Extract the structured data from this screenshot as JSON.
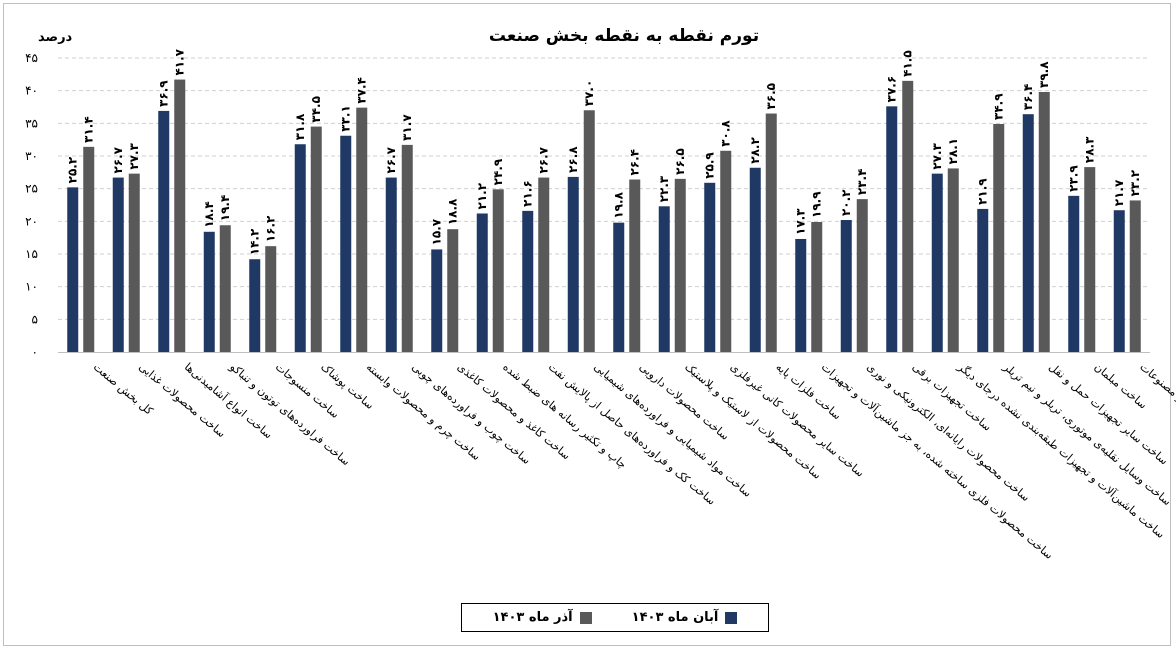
{
  "chart_data": {
    "type": "bar",
    "title": "تورم نقطه به نقطه بخش صنعت",
    "ylabel": "درصد",
    "ylim": [
      0,
      45
    ],
    "yticks": [
      "۰",
      "۵",
      "۱۰",
      "۱۵",
      "۲۰",
      "۲۵",
      "۳۰",
      "۳۵",
      "۴۰",
      "۴۵"
    ],
    "grid": true,
    "legend_position": "bottom",
    "categories": [
      "کل بخش صنعت",
      "ساخت محصولات غذایی",
      "ساخت انواع آشامیدنی‌ها",
      "ساخت فراورده‌های توتون و تنباکو",
      "ساخت منسوجات",
      "ساخت پوشاک",
      "ساخت چرم و محصولات وابسته",
      "ساخت چوب و فراورده‌های چوبی",
      "ساخت کاغذ و محصولات کاغذی",
      "چاپ و تکثیر رسانه های ضبط شده",
      "ساخت کک و فراورده‌های حاصل از پالایش نفت",
      "ساخت مواد شیمیایی و فراورده‌های شیمیایی",
      "ساخت محصولات دارویی",
      "ساخت محصولات از لاستیک و پلاستیک",
      "ساخت سایر محصولات کانی غیرفلزی",
      "ساخت فلزات پایه",
      "ساخت محصولات فلزی ساخته شده، به جز ماشین‌آلات و تجهیزات",
      "ساخت محصولات رایانه‌ای، الکترونیکی و نوری",
      "ساخت تجهیزات برقی",
      "ساخت ماشین‌آلات و تجهیزات طبقه‌بندی نشده درجای دیگر",
      "ساخت وسایل نقلیه‌ی موتوری، تریلر و نیم تریلر",
      "ساخت سایر تجهیزات حمل و نقل",
      "ساخت مبلمان",
      "ساخت سایر مصنوعات"
    ],
    "series": [
      {
        "name": "آبان ماه ۱۴۰۳",
        "color": "#1f3864",
        "values": [
          25.2,
          26.7,
          36.9,
          18.4,
          14.2,
          31.8,
          33.1,
          26.7,
          15.7,
          21.2,
          21.6,
          26.8,
          19.8,
          22.3,
          25.9,
          28.2,
          17.3,
          20.2,
          37.6,
          27.3,
          21.9,
          36.4,
          23.9,
          21.7
        ],
        "labels": [
          "۲۵.۲",
          "۲۶.۷",
          "۳۶.۹",
          "۱۸.۴",
          "۱۴.۲",
          "۳۱.۸",
          "۳۳.۱",
          "۲۶.۷",
          "۱۵.۷",
          "۲۱.۲",
          "۲۱.۶",
          "۲۶.۸",
          "۱۹.۸",
          "۲۲.۳",
          "۲۵.۹",
          "۲۸.۲",
          "۱۷.۳",
          "۲۰.۲",
          "۳۷.۶",
          "۲۷.۳",
          "۲۱.۹",
          "۳۶.۴",
          "۲۳.۹",
          "۲۱.۷"
        ]
      },
      {
        "name": "آذر ماه ۱۴۰۳",
        "color": "#595959",
        "values": [
          31.4,
          27.3,
          41.7,
          19.4,
          16.2,
          34.5,
          37.4,
          31.7,
          18.8,
          24.9,
          26.7,
          37.0,
          26.4,
          26.5,
          30.8,
          36.5,
          19.9,
          23.4,
          41.5,
          28.1,
          34.9,
          39.8,
          28.3,
          23.2
        ],
        "labels": [
          "۳۱.۴",
          "۲۷.۳",
          "۴۱.۷",
          "۱۹.۴",
          "۱۶.۲",
          "۳۴.۵",
          "۳۷.۴",
          "۳۱.۷",
          "۱۸.۸",
          "۲۴.۹",
          "۲۶.۷",
          "۳۷.۰",
          "۲۶.۴",
          "۲۶.۵",
          "۳۰.۸",
          "۳۶.۵",
          "۱۹.۹",
          "۲۳.۴",
          "۴۱.۵",
          "۲۸.۱",
          "۳۴.۹",
          "۳۹.۸",
          "۲۸.۳",
          "۲۳.۲"
        ]
      }
    ]
  }
}
